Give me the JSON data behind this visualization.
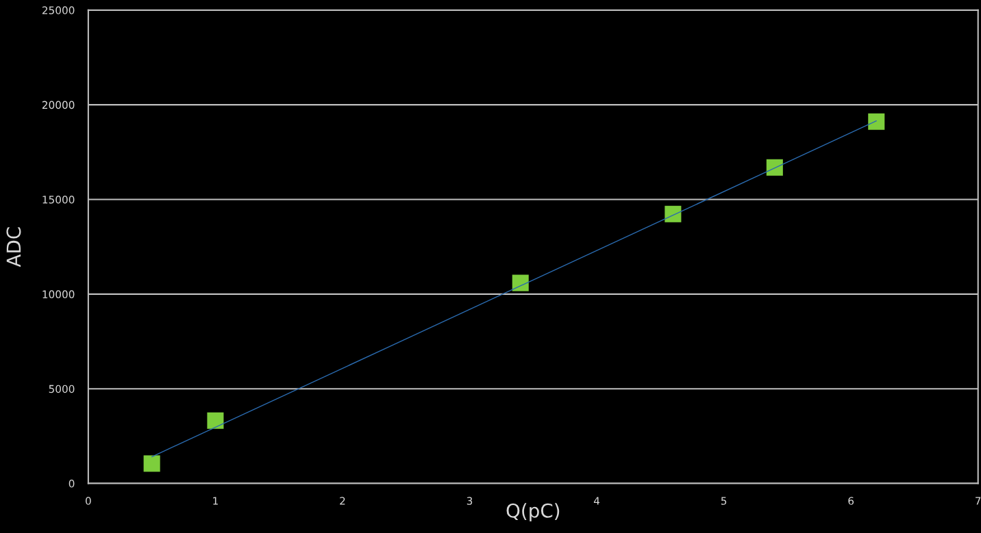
{
  "chart_data": {
    "type": "scatter",
    "xlabel": "Q(pC)",
    "ylabel": "ADC",
    "xlim": [
      0,
      7
    ],
    "xticks": [
      0,
      1,
      2,
      3,
      4,
      5,
      6,
      7
    ],
    "ylim": [
      0,
      25000
    ],
    "yticks": [
      0,
      5000,
      10000,
      15000,
      20000,
      25000
    ],
    "grid": "y",
    "legend": false,
    "series": [
      {
        "color": "#7dce3c",
        "marker": "square",
        "x": [
          0.5,
          1,
          3.4,
          4.6,
          5.4,
          6.2
        ],
        "values": [
          1050,
          3320,
          10590,
          14230,
          16690,
          19110
        ]
      },
      {
        "type": "line",
        "color": "#2a6bb0",
        "marker": "none",
        "line_style": "solid",
        "x": [
          0.5,
          6.2
        ],
        "values": [
          1410,
          19150
        ]
      }
    ]
  }
}
